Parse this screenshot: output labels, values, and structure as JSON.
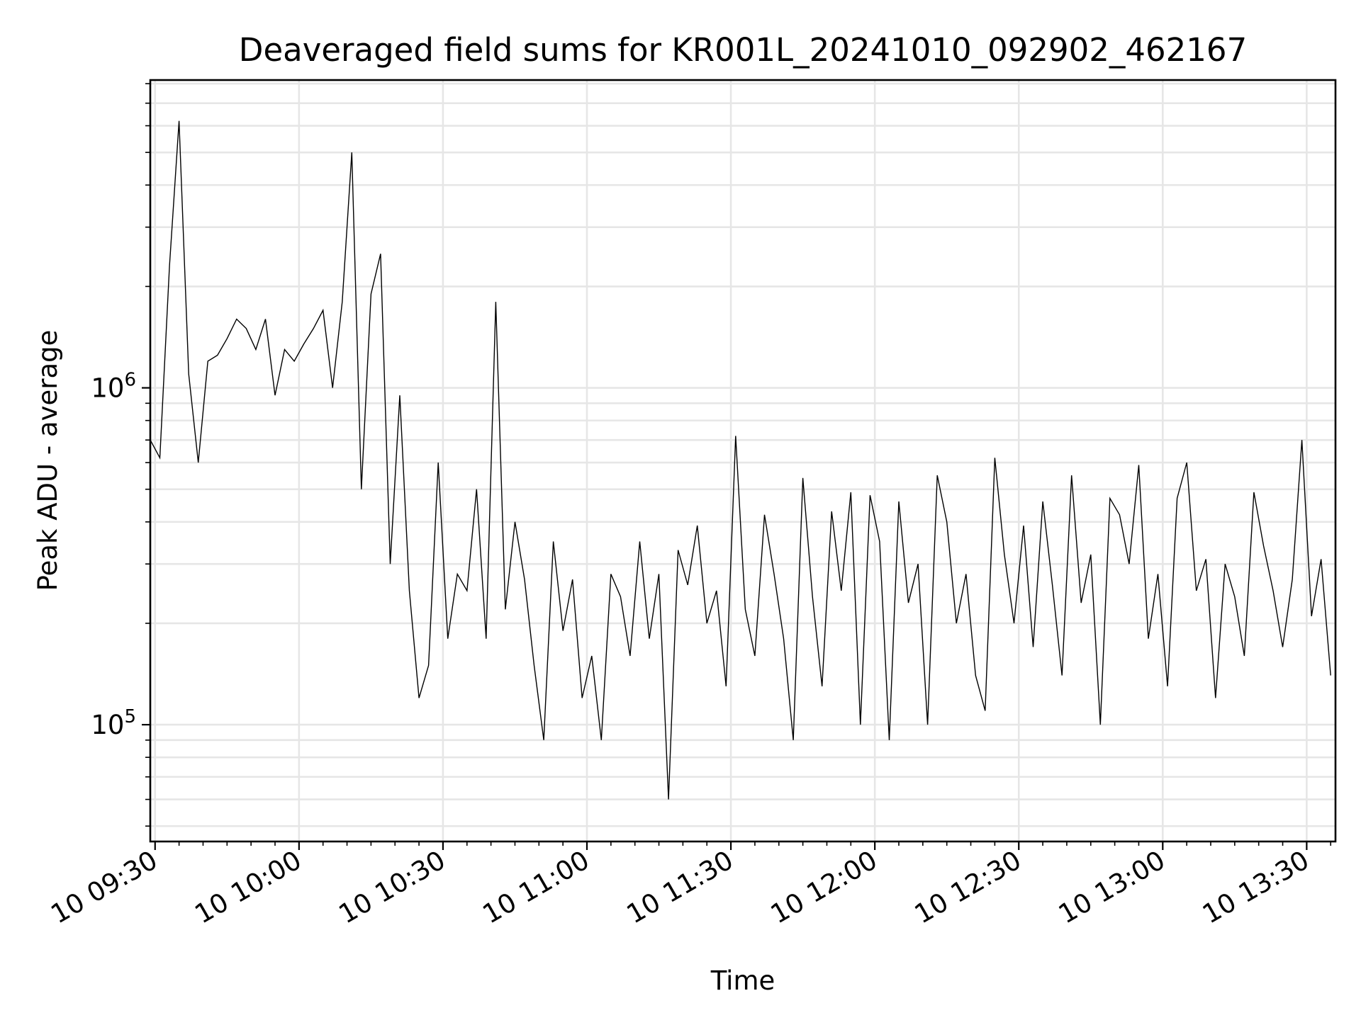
{
  "chart_data": {
    "type": "line",
    "title": "Deaveraged field sums for KR001L_20241010_092902_462167",
    "xlabel": "Time",
    "ylabel": "Peak ADU - average",
    "y_scale": "log",
    "ylim": [
      45000,
      8200000
    ],
    "xlim": [
      "10 09:29",
      "10 13:36"
    ],
    "grid": true,
    "x_ticks": [
      "10 09:30",
      "10 10:00",
      "10 10:30",
      "10 11:00",
      "10 11:30",
      "10 12:00",
      "10 12:30",
      "10 13:00",
      "10 13:30"
    ],
    "y_ticks": [
      {
        "base": "10",
        "exp": "5",
        "value": 100000
      },
      {
        "base": "10",
        "exp": "6",
        "value": 1000000
      }
    ],
    "series": [
      {
        "color": "#000000",
        "x": [
          "10 09:29",
          "10 09:31",
          "10 09:33",
          "10 09:35",
          "10 09:37",
          "10 09:39",
          "10 09:41",
          "10 09:43",
          "10 09:45",
          "10 09:47",
          "10 09:49",
          "10 09:51",
          "10 09:53",
          "10 09:55",
          "10 09:57",
          "10 09:59",
          "10 10:01",
          "10 10:03",
          "10 10:05",
          "10 10:07",
          "10 10:09",
          "10 10:11",
          "10 10:13",
          "10 10:15",
          "10 10:17",
          "10 10:19",
          "10 10:21",
          "10 10:23",
          "10 10:25",
          "10 10:27",
          "10 10:29",
          "10 10:31",
          "10 10:33",
          "10 10:35",
          "10 10:37",
          "10 10:39",
          "10 10:41",
          "10 10:43",
          "10 10:45",
          "10 10:47",
          "10 10:49",
          "10 10:51",
          "10 10:53",
          "10 10:55",
          "10 10:57",
          "10 10:59",
          "10 11:01",
          "10 11:03",
          "10 11:05",
          "10 11:07",
          "10 11:09",
          "10 11:11",
          "10 11:13",
          "10 11:15",
          "10 11:17",
          "10 11:19",
          "10 11:21",
          "10 11:23",
          "10 11:25",
          "10 11:27",
          "10 11:29",
          "10 11:31",
          "10 11:33",
          "10 11:35",
          "10 11:37",
          "10 11:39",
          "10 11:41",
          "10 11:43",
          "10 11:45",
          "10 11:47",
          "10 11:49",
          "10 11:51",
          "10 11:53",
          "10 11:55",
          "10 11:57",
          "10 11:59",
          "10 12:01",
          "10 12:03",
          "10 12:05",
          "10 12:07",
          "10 12:09",
          "10 12:11",
          "10 12:13",
          "10 12:15",
          "10 12:17",
          "10 12:19",
          "10 12:21",
          "10 12:23",
          "10 12:25",
          "10 12:27",
          "10 12:29",
          "10 12:31",
          "10 12:33",
          "10 12:35",
          "10 12:37",
          "10 12:39",
          "10 12:41",
          "10 12:43",
          "10 12:45",
          "10 12:47",
          "10 12:49",
          "10 12:51",
          "10 12:53",
          "10 12:55",
          "10 12:57",
          "10 12:59",
          "10 13:01",
          "10 13:03",
          "10 13:05",
          "10 13:07",
          "10 13:09",
          "10 13:11",
          "10 13:13",
          "10 13:15",
          "10 13:17",
          "10 13:19",
          "10 13:21",
          "10 13:23",
          "10 13:25",
          "10 13:27",
          "10 13:29",
          "10 13:31",
          "10 13:33",
          "10 13:35"
        ],
        "y": [
          700000,
          620000,
          2300000,
          6200000,
          1100000,
          600000,
          1200000,
          1250000,
          1400000,
          1600000,
          1500000,
          1300000,
          1600000,
          950000,
          1300000,
          1200000,
          1350000,
          1500000,
          1700000,
          1000000,
          1800000,
          5000000,
          500000,
          1900000,
          2500000,
          300000,
          950000,
          250000,
          120000,
          150000,
          600000,
          180000,
          280000,
          250000,
          500000,
          180000,
          1800000,
          220000,
          400000,
          270000,
          150000,
          90000,
          350000,
          190000,
          270000,
          120000,
          160000,
          90000,
          280000,
          240000,
          160000,
          350000,
          180000,
          280000,
          60000,
          330000,
          260000,
          390000,
          200000,
          250000,
          130000,
          720000,
          220000,
          160000,
          420000,
          280000,
          180000,
          90000,
          540000,
          240000,
          130000,
          430000,
          250000,
          490000,
          100000,
          480000,
          350000,
          90000,
          460000,
          230000,
          300000,
          100000,
          550000,
          400000,
          200000,
          280000,
          140000,
          110000,
          620000,
          320000,
          200000,
          390000,
          170000,
          460000,
          260000,
          140000,
          550000,
          230000,
          320000,
          100000,
          470000,
          420000,
          300000,
          590000,
          180000,
          280000,
          130000,
          470000,
          600000,
          250000,
          310000,
          120000,
          300000,
          240000,
          160000,
          490000,
          340000,
          250000,
          170000,
          270000,
          700000,
          210000,
          310000,
          140000
        ]
      }
    ]
  }
}
